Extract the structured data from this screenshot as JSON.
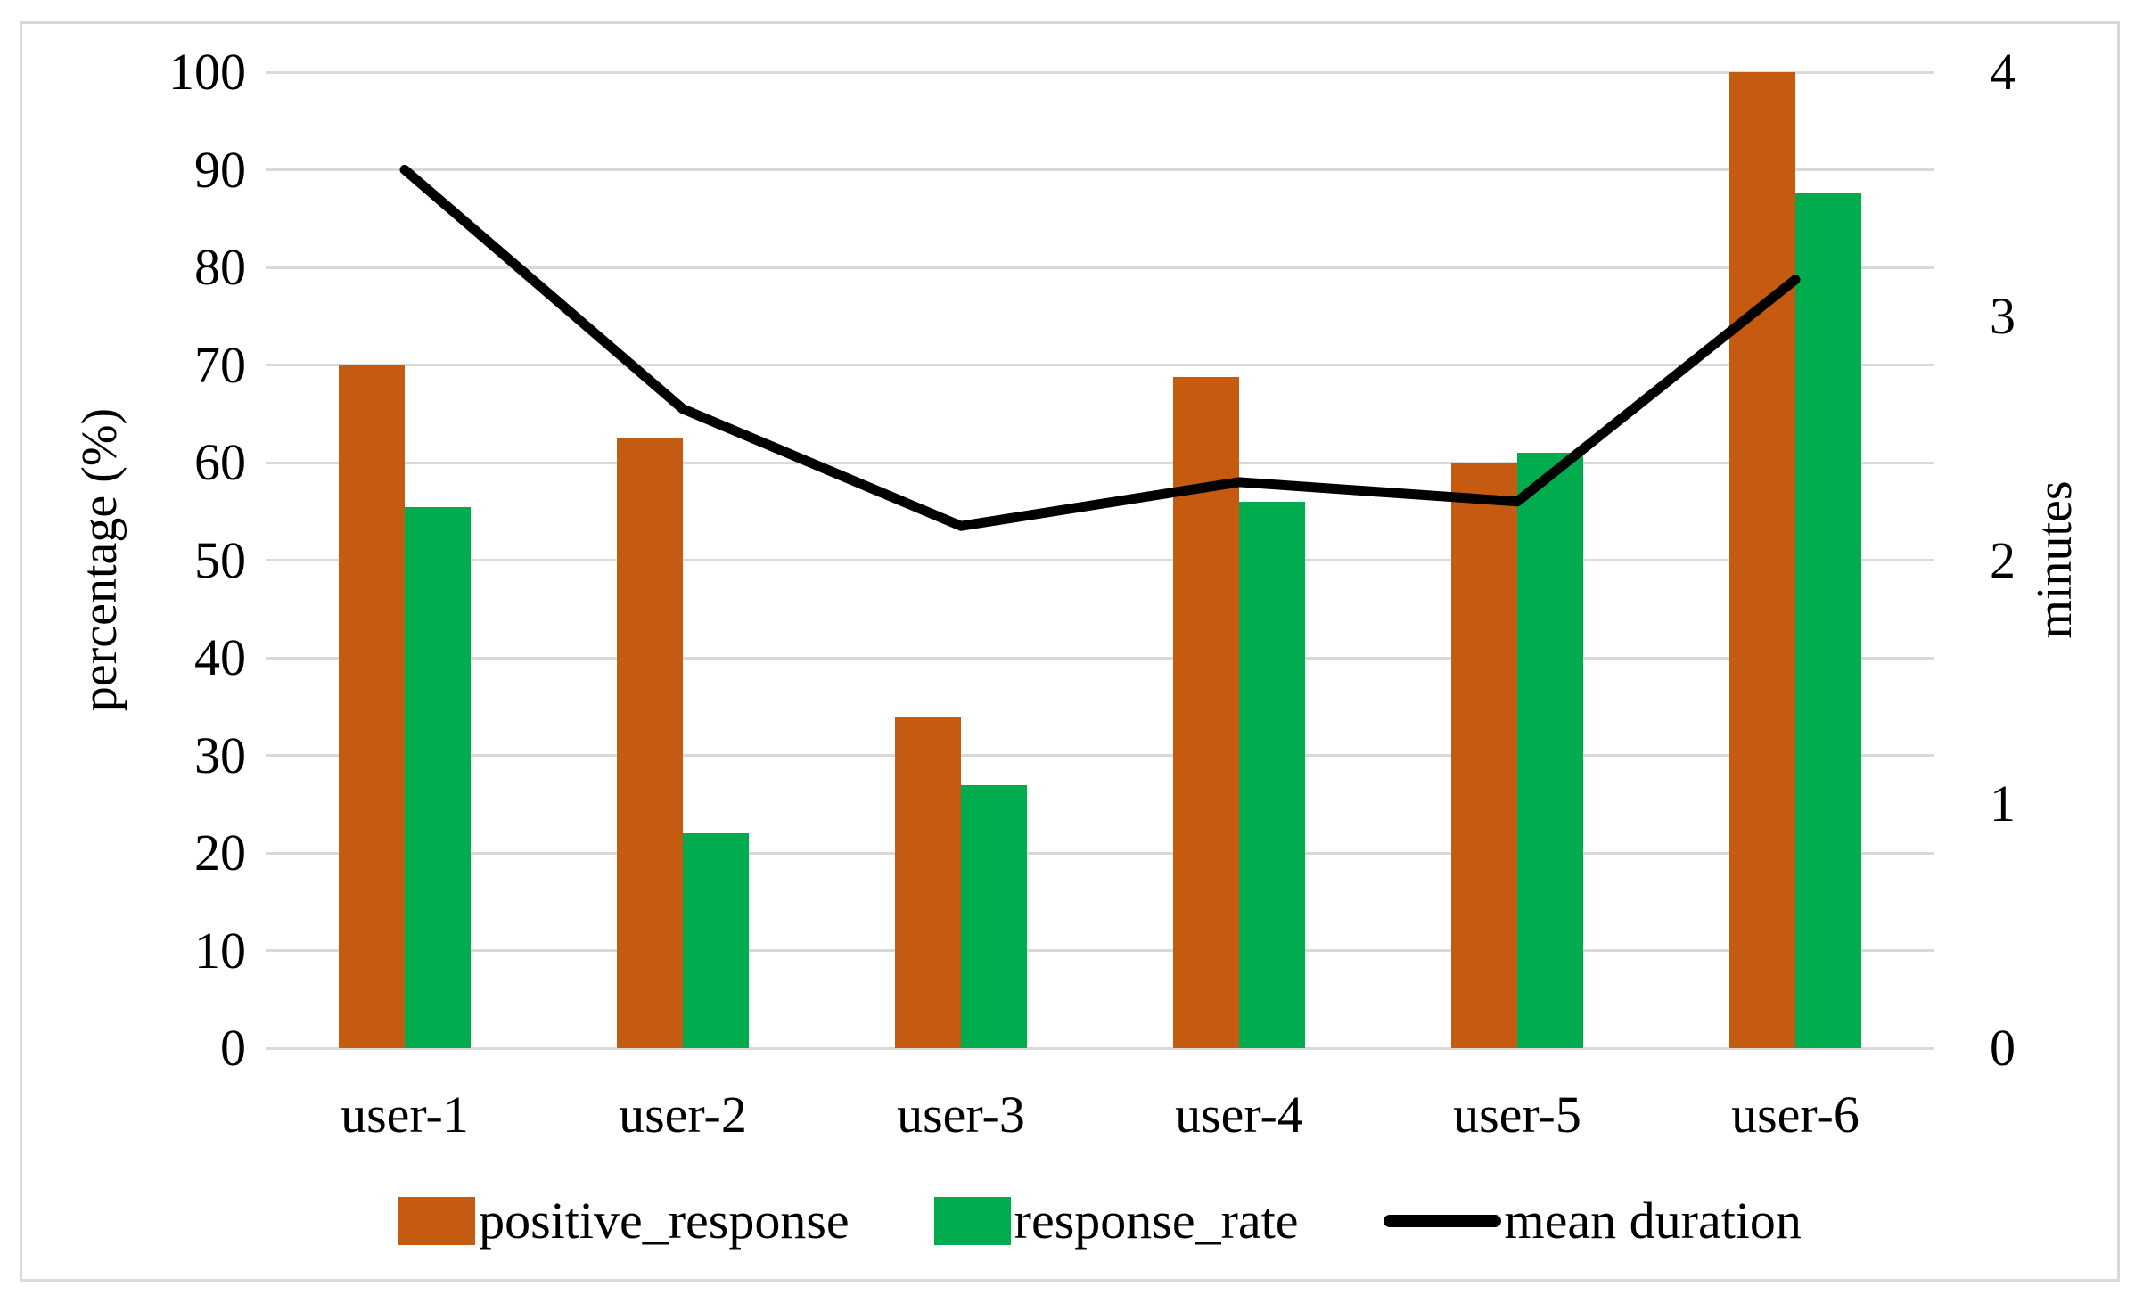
{
  "chart_data": {
    "type": "combo_bar_line",
    "categories": [
      "user-1",
      "user-2",
      "user-3",
      "user-4",
      "user-5",
      "user-6"
    ],
    "series": [
      {
        "name": "positive_response",
        "type": "bar",
        "axis": "left",
        "color": "#C55A11",
        "values": [
          70,
          62.5,
          34,
          68.8,
          60,
          100
        ]
      },
      {
        "name": "response_rate",
        "type": "bar",
        "axis": "left",
        "color": "#00AC4E",
        "values": [
          55.4,
          22,
          26.9,
          56,
          61,
          87.7
        ]
      },
      {
        "name": "mean duration",
        "type": "line",
        "axis": "right",
        "color": "#000000",
        "values": [
          3.6,
          2.62,
          2.14,
          2.32,
          2.24,
          3.15
        ]
      }
    ],
    "left_axis": {
      "label": "percentage (%)",
      "min": 0,
      "max": 100,
      "ticks": [
        0,
        10,
        20,
        30,
        40,
        50,
        60,
        70,
        80,
        90,
        100
      ]
    },
    "right_axis": {
      "label": "minutes",
      "min": 0,
      "max": 4,
      "ticks": [
        0,
        1,
        2,
        3,
        4
      ]
    },
    "legend_position": "bottom",
    "grid": "horizontal",
    "gridline_color": "#D9D9D9",
    "frame_color": "#D9D9D9",
    "background": "#FFFFFF"
  }
}
